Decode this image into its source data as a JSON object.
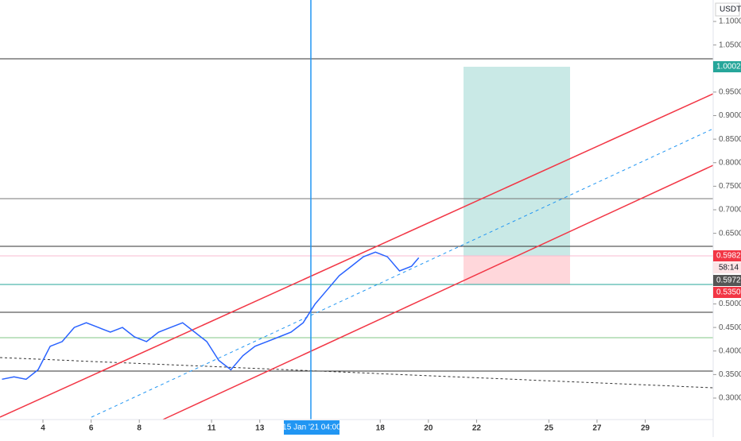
{
  "chart_data": {
    "type": "line",
    "x": [
      2.3,
      2.8,
      3.3,
      3.8,
      4.3,
      4.8,
      5.3,
      5.8,
      6.3,
      6.8,
      7.3,
      7.8,
      8.3,
      8.8,
      9.3,
      9.8,
      10.3,
      10.8,
      11.3,
      11.8,
      12.3,
      12.8,
      13.3,
      13.8,
      14.3,
      14.8,
      15.3,
      15.8,
      16.3,
      16.8,
      17.3,
      17.8,
      18.3,
      18.8,
      19.3,
      19.6
    ],
    "values": [
      0.34,
      0.345,
      0.34,
      0.36,
      0.41,
      0.42,
      0.45,
      0.46,
      0.45,
      0.44,
      0.45,
      0.43,
      0.42,
      0.44,
      0.45,
      0.46,
      0.44,
      0.42,
      0.38,
      0.36,
      0.39,
      0.41,
      0.42,
      0.43,
      0.44,
      0.46,
      0.5,
      0.53,
      0.56,
      0.58,
      0.6,
      0.61,
      0.6,
      0.57,
      0.58,
      0.598
    ],
    "color": "#2962ff",
    "xlim": [
      2.218,
      31.82
    ],
    "xticks": [
      4,
      6,
      8,
      11,
      13,
      18,
      20,
      22,
      25,
      27,
      29
    ],
    "ylim": [
      0.2544,
      1.1456
    ],
    "yticks": [
      {
        "value": 0.3,
        "label": "0.3000"
      },
      {
        "value": 0.35,
        "label": "0.3500"
      },
      {
        "value": 0.4,
        "label": "0.4000"
      },
      {
        "value": 0.45,
        "label": "0.4500"
      },
      {
        "value": 0.5,
        "label": "0.5000"
      },
      {
        "value": 0.65,
        "label": "0.6500"
      },
      {
        "value": 0.7,
        "label": "0.7000"
      },
      {
        "value": 0.75,
        "label": "0.7500"
      },
      {
        "value": 0.8,
        "label": "0.8000"
      },
      {
        "value": 0.85,
        "label": "0.8500"
      },
      {
        "value": 0.9,
        "label": "0.9000"
      },
      {
        "value": 0.95,
        "label": "0.9500"
      },
      {
        "value": 1.05,
        "label": "1.0500"
      },
      {
        "value": 1.1,
        "label": "1.1000"
      }
    ],
    "currency": "USDT",
    "crosshair_label": "15 Jan '21  04:00",
    "price_labels": [
      "1.0002",
      "0.5982",
      "58:14",
      "0.5972",
      "0.5350"
    ]
  }
}
